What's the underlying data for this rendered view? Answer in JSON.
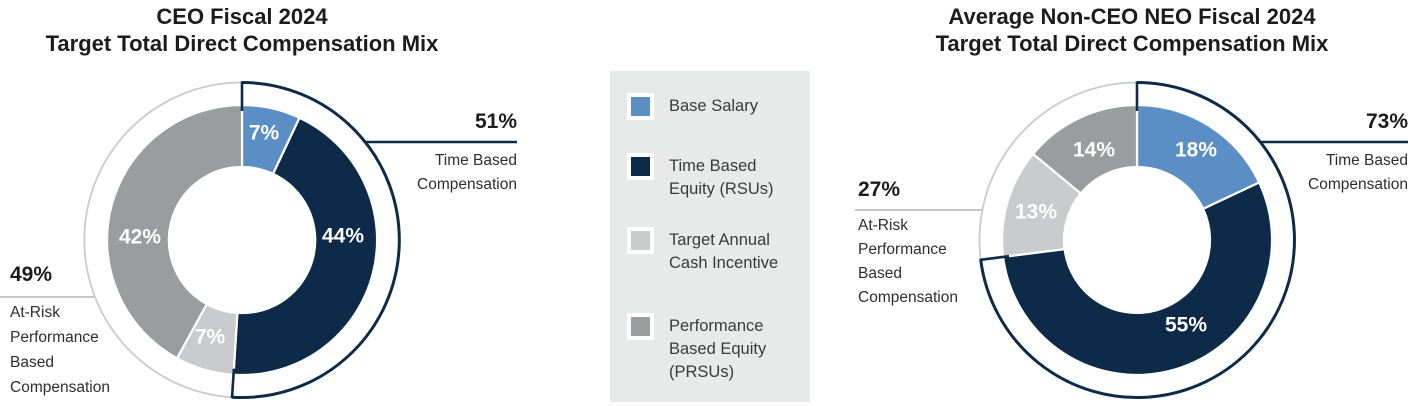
{
  "palette": {
    "base_salary": "#5C8EC6",
    "time_based_equity": "#0E2A49",
    "cash_incentive": "#C9CBCC",
    "performance_equity": "#9A9C9E",
    "ring_gray": "#C9CBCC",
    "leader_gray": "#C6C8C9",
    "legend_bg": "#E8E9E9",
    "text_dark": "#1c1c1c",
    "label_white": "#ffffff"
  },
  "legend": {
    "items": [
      {
        "label": "Base Salary",
        "color_key": "base_salary"
      },
      {
        "label": "Time Based\nEquity (RSUs)",
        "color_key": "time_based_equity"
      },
      {
        "label": "Target Annual\nCash Incentive",
        "color_key": "cash_incentive"
      },
      {
        "label": "Performance\nBased Equity\n(PRSUs)",
        "color_key": "performance_equity"
      }
    ]
  },
  "chart_data": [
    {
      "type": "pie",
      "variant": "donut",
      "title": "CEO Fiscal 2024\nTarget Total Direct Compensation Mix",
      "legend_position": "center-between-charts",
      "start_angle_deg": 0,
      "direction": "clockwise",
      "segments": [
        {
          "label": "Base Salary",
          "value": 7,
          "display": "7%",
          "color_key": "base_salary"
        },
        {
          "label": "Time Based Equity (RSUs)",
          "value": 44,
          "display": "44%",
          "color_key": "time_based_equity"
        },
        {
          "label": "Target Annual Cash Incentive",
          "value": 7,
          "display": "7%",
          "color_key": "cash_incentive"
        },
        {
          "label": "Performance Based Equity (PRSUs)",
          "value": 42,
          "display": "42%",
          "color_key": "performance_equity"
        }
      ],
      "callouts": {
        "right": {
          "pct": "51%",
          "label": "Time Based\nCompensation",
          "arc_pct": 51
        },
        "left": {
          "pct": "49%",
          "label": "At-Risk\nPerformance\nBased\nCompensation",
          "arc_pct": 49
        }
      }
    },
    {
      "type": "pie",
      "variant": "donut",
      "title": "Average Non-CEO NEO Fiscal 2024\nTarget Total Direct Compensation Mix",
      "legend_position": "center-between-charts",
      "start_angle_deg": 0,
      "direction": "clockwise",
      "segments": [
        {
          "label": "Base Salary",
          "value": 18,
          "display": "18%",
          "color_key": "base_salary"
        },
        {
          "label": "Time Based Equity (RSUs)",
          "value": 55,
          "display": "55%",
          "color_key": "time_based_equity"
        },
        {
          "label": "Target Annual Cash Incentive",
          "value": 13,
          "display": "13%",
          "color_key": "cash_incentive"
        },
        {
          "label": "Performance Based Equity (PRSUs)",
          "value": 14,
          "display": "14%",
          "color_key": "performance_equity"
        }
      ],
      "callouts": {
        "right": {
          "pct": "73%",
          "label": "Time Based\nCompensation",
          "arc_pct": 73
        },
        "left": {
          "pct": "27%",
          "label": "At-Risk\nPerformance\nBased\nCompensation",
          "arc_pct": 27
        }
      }
    }
  ]
}
